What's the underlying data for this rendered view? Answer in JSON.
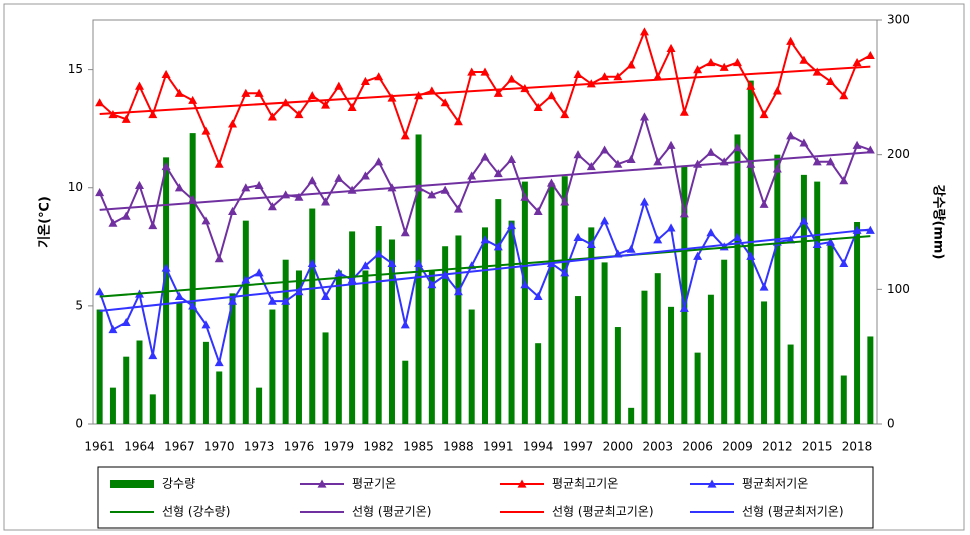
{
  "chart_data": {
    "type": "combo",
    "categories": [
      "1961",
      null,
      null,
      "1964",
      null,
      null,
      "1967",
      null,
      null,
      "1970",
      null,
      null,
      "1973",
      null,
      null,
      "1976",
      null,
      null,
      "1979",
      null,
      null,
      "1982",
      null,
      null,
      "1985",
      null,
      null,
      "1988",
      null,
      null,
      "1991",
      null,
      null,
      "1994",
      null,
      null,
      "1997",
      null,
      null,
      "2000",
      null,
      null,
      "2003",
      null,
      null,
      "2006",
      null,
      null,
      "2009",
      null,
      null,
      "2012",
      null,
      null,
      "2015",
      null,
      null,
      "2018",
      null
    ],
    "y_label": "기온(℃)",
    "y2_label": "강수량(mm)",
    "ylim": [
      0,
      17.1
    ],
    "yticks": [
      0,
      5,
      10,
      15
    ],
    "y2lim": [
      0,
      300
    ],
    "y2ticks": [
      0,
      100,
      200,
      300
    ],
    "series": [
      {
        "name": "강수량",
        "type": "bar",
        "axis": "y2",
        "color": "#008000",
        "values": [
          85,
          27,
          50,
          62,
          22,
          198,
          90,
          216,
          61,
          39,
          97,
          151,
          27,
          85,
          122,
          114,
          160,
          68,
          114,
          143,
          114,
          147,
          137,
          47,
          215,
          114,
          132,
          140,
          85,
          146,
          167,
          151,
          180,
          60,
          179,
          184,
          95,
          146,
          120,
          72,
          12,
          99,
          112,
          87,
          192,
          53,
          96,
          122,
          215,
          255,
          91,
          200,
          59,
          185,
          180,
          133,
          36,
          150,
          65
        ]
      },
      {
        "name": "평균기온",
        "type": "line",
        "color": "#7030a0",
        "values": [
          9.8,
          8.5,
          8.8,
          10.1,
          8.4,
          10.9,
          10.0,
          9.5,
          8.6,
          7.0,
          9.0,
          10.0,
          10.1,
          9.2,
          9.7,
          9.6,
          10.3,
          9.4,
          10.4,
          9.9,
          10.5,
          11.1,
          10.0,
          8.1,
          10.0,
          9.7,
          9.9,
          9.1,
          10.5,
          11.3,
          10.6,
          11.2,
          9.6,
          9.0,
          10.2,
          9.4,
          11.4,
          10.9,
          11.6,
          11.0,
          11.2,
          13.0,
          11.1,
          11.8,
          8.9,
          11.0,
          11.5,
          11.1,
          11.7,
          11.0,
          9.3,
          10.8,
          12.2,
          11.9,
          11.1,
          11.1,
          10.3,
          11.8,
          11.6
        ]
      },
      {
        "name": "평균최고기온",
        "type": "line",
        "color": "#ff0000",
        "values": [
          13.6,
          13.1,
          12.9,
          14.3,
          13.1,
          14.8,
          14.0,
          13.7,
          12.4,
          11.0,
          12.7,
          14.0,
          14.0,
          13.0,
          13.6,
          13.1,
          13.9,
          13.5,
          14.3,
          13.4,
          14.5,
          14.7,
          13.8,
          12.2,
          13.9,
          14.1,
          13.6,
          12.8,
          14.9,
          14.9,
          14.0,
          14.6,
          14.2,
          13.4,
          13.9,
          13.1,
          14.8,
          14.4,
          14.7,
          14.7,
          15.2,
          16.6,
          14.7,
          15.9,
          13.2,
          15.0,
          15.3,
          15.1,
          15.3,
          14.3,
          13.1,
          14.1,
          16.2,
          15.4,
          14.9,
          14.5,
          13.9,
          15.3,
          15.6
        ]
      },
      {
        "name": "평균최저기온",
        "type": "line",
        "color": "#3333ff",
        "values": [
          5.6,
          4.0,
          4.3,
          5.5,
          2.9,
          6.6,
          5.4,
          5.0,
          4.2,
          2.6,
          5.2,
          6.1,
          6.4,
          5.2,
          5.2,
          5.6,
          6.8,
          5.4,
          6.4,
          6.1,
          6.7,
          7.2,
          6.8,
          4.2,
          6.8,
          5.9,
          6.3,
          5.6,
          6.7,
          7.8,
          7.5,
          8.4,
          5.9,
          5.4,
          6.8,
          6.4,
          7.9,
          7.6,
          8.6,
          7.2,
          7.4,
          9.4,
          7.8,
          8.3,
          4.9,
          7.1,
          8.1,
          7.5,
          7.9,
          7.1,
          5.8,
          7.7,
          7.8,
          8.6,
          7.6,
          7.7,
          6.8,
          8.2,
          8.2
        ]
      }
    ],
    "trendlines": [
      {
        "name": "선형 (강수량)",
        "color": "#008000"
      },
      {
        "name": "선형 (평균기온)",
        "color": "#7030a0"
      },
      {
        "name": "선형 (평균최고기온)",
        "color": "#ff0000"
      },
      {
        "name": "선형 (평균최저기온)",
        "color": "#3333ff"
      }
    ]
  }
}
